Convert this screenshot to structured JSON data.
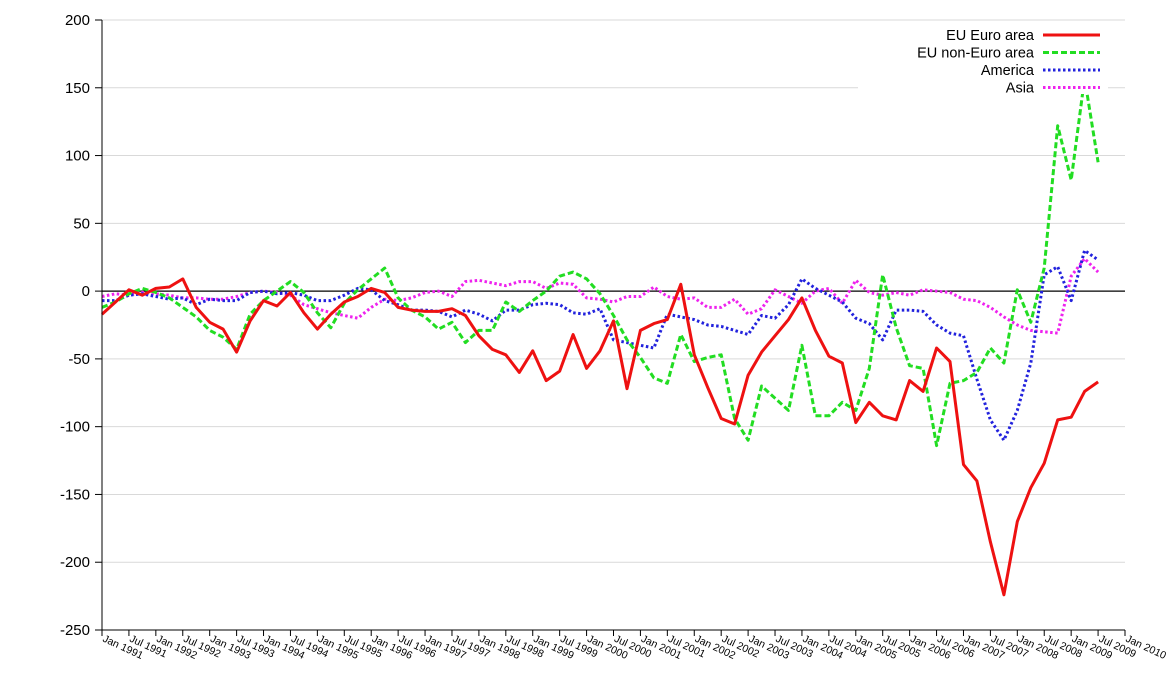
{
  "chart_data": {
    "type": "line",
    "title": "",
    "xlabel": "",
    "ylabel": "",
    "ylim": [
      -250,
      200
    ],
    "yticks": [
      200,
      150,
      100,
      50,
      0,
      -50,
      -100,
      -150,
      -200,
      -250
    ],
    "grid": "horizontal",
    "legend_placement": "top-right",
    "x_tick_labels": [
      "Jan 1991",
      "Jul 1991",
      "Jan 1992",
      "Jul 1992",
      "Jan 1993",
      "Jul 1993",
      "Jan 1994",
      "Jul 1994",
      "Jan 1995",
      "Jul 1995",
      "Jan 1996",
      "Jul 1996",
      "Jan 1997",
      "Jul 1997",
      "Jan 1998",
      "Jul 1998",
      "Jan 1999",
      "Jul 1999",
      "Jan 2000",
      "Jul 2000",
      "Jan 2001",
      "Jul 2001",
      "Jan 2002",
      "Jul 2002",
      "Jan 2003",
      "Jul 2003",
      "Jan 2004",
      "Jul 2004",
      "Jan 2005",
      "Jul 2005",
      "Jan 2006",
      "Jul 2006",
      "Jan 2007",
      "Jul 2007",
      "Jan 2008",
      "Jul 2008",
      "Jan 2009",
      "Jul 2009",
      "Jan 2010"
    ],
    "x_period": "quarterly from Jan 1991 to Jan 2010",
    "series": [
      {
        "name": "EU Euro area",
        "color": "#ee1111",
        "style": "solid",
        "values": [
          -17,
          -8,
          1,
          -3,
          2,
          3,
          9,
          -12,
          -23,
          -28,
          -45,
          -22,
          -7,
          -11,
          -1,
          -16,
          -28,
          -17,
          -8,
          -4,
          2,
          -1,
          -12,
          -14,
          -15,
          -15,
          -13,
          -18,
          -33,
          -43,
          -47,
          -60,
          -44,
          -66,
          -59,
          -32,
          -57,
          -44,
          -22,
          -72,
          -29,
          -24,
          -21,
          5,
          -47,
          -71,
          -94,
          -98,
          -62,
          -45,
          -33,
          -21,
          -5,
          -29,
          -48,
          -53,
          -97,
          -82,
          -92,
          -95,
          -66,
          -74,
          -42,
          -52,
          -128,
          -140,
          -185,
          -224,
          -170,
          -145,
          -127,
          -95,
          -93,
          -74,
          -67
        ]
      },
      {
        "name": "EU non-Euro area",
        "color": "#22dd22",
        "style": "dashed",
        "values": [
          -12,
          -8,
          -2,
          2,
          -1,
          -5,
          -12,
          -19,
          -29,
          -34,
          -43,
          -17,
          -7,
          0,
          7,
          -1,
          -16,
          -27,
          -9,
          1,
          9,
          17,
          -5,
          -14,
          -19,
          -28,
          -23,
          -38,
          -29,
          -29,
          -8,
          -15,
          -7,
          0,
          11,
          14,
          9,
          -2,
          -18,
          -36,
          -49,
          -64,
          -68,
          -32,
          -52,
          -49,
          -47,
          -94,
          -110,
          -70,
          -79,
          -88,
          -40,
          -92,
          -92,
          -82,
          -88,
          -57,
          12,
          -27,
          -55,
          -57,
          -114,
          -68,
          -66,
          -60,
          -42,
          -53,
          1,
          -23,
          17,
          122,
          82,
          157,
          95
        ]
      },
      {
        "name": "America",
        "color": "#2222dd",
        "style": "dotted",
        "values": [
          -7,
          -7,
          -3,
          -2,
          -4,
          -6,
          -5,
          -10,
          -6,
          -7,
          -7,
          -1,
          0,
          -2,
          -1,
          -3,
          -7,
          -7,
          -3,
          2,
          1,
          -7,
          -10,
          -14,
          -14,
          -15,
          -19,
          -14,
          -17,
          -22,
          -14,
          -14,
          -10,
          -9,
          -10,
          -16,
          -17,
          -13,
          -36,
          -38,
          -40,
          -42,
          -17,
          -19,
          -21,
          -25,
          -26,
          -29,
          -32,
          -18,
          -20,
          -10,
          9,
          2,
          -3,
          -8,
          -20,
          -24,
          -36,
          -14,
          -14,
          -15,
          -25,
          -31,
          -33,
          -65,
          -95,
          -110,
          -88,
          -53,
          12,
          18,
          -7,
          30,
          23
        ]
      },
      {
        "name": "Asia",
        "color": "#ee22ee",
        "style": "dotted",
        "values": [
          -4,
          -2,
          -3,
          -1,
          -2,
          -3,
          -5,
          -5,
          -6,
          -6,
          -4,
          -1,
          0,
          -1,
          -3,
          -10,
          -13,
          -16,
          -18,
          -20,
          -12,
          -6,
          -7,
          -5,
          -1,
          0,
          -4,
          7,
          8,
          6,
          4,
          7,
          7,
          2,
          6,
          5,
          -5,
          -6,
          -8,
          -4,
          -4,
          3,
          -4,
          -6,
          -5,
          -12,
          -12,
          -6,
          -17,
          -13,
          1,
          -4,
          -9,
          0,
          2,
          -9,
          8,
          -1,
          -3,
          -1,
          -3,
          1,
          0,
          -1,
          -6,
          -7,
          -12,
          -19,
          -25,
          -29,
          -30,
          -31,
          11,
          24,
          14
        ]
      }
    ]
  }
}
